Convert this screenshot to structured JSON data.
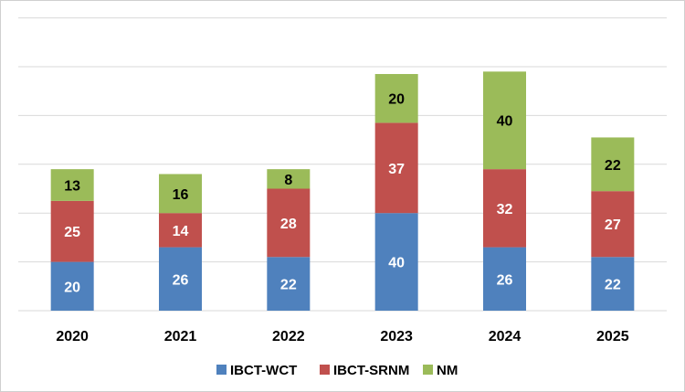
{
  "chart_data": {
    "type": "bar",
    "stacked": true,
    "categories": [
      "2020",
      "2021",
      "2022",
      "2023",
      "2024",
      "2025"
    ],
    "series": [
      {
        "name": "IBCT-WCT",
        "color": "#4f81bd",
        "label_color": "#ffffff",
        "values": [
          20,
          26,
          22,
          40,
          26,
          22
        ]
      },
      {
        "name": "IBCT-SRNM",
        "color": "#c0504d",
        "label_color": "#ffffff",
        "values": [
          25,
          14,
          28,
          37,
          32,
          27
        ]
      },
      {
        "name": "NM",
        "color": "#9bbb59",
        "label_color": "#000000",
        "values": [
          13,
          16,
          8,
          20,
          40,
          22
        ]
      }
    ],
    "title": "",
    "xlabel": "",
    "ylabel": "",
    "ylim": [
      0,
      120
    ],
    "y_gridlines": [
      0,
      20,
      40,
      60,
      80,
      100,
      120
    ],
    "y_tick_labels_shown": false,
    "grid": true,
    "legend_position": "bottom"
  }
}
